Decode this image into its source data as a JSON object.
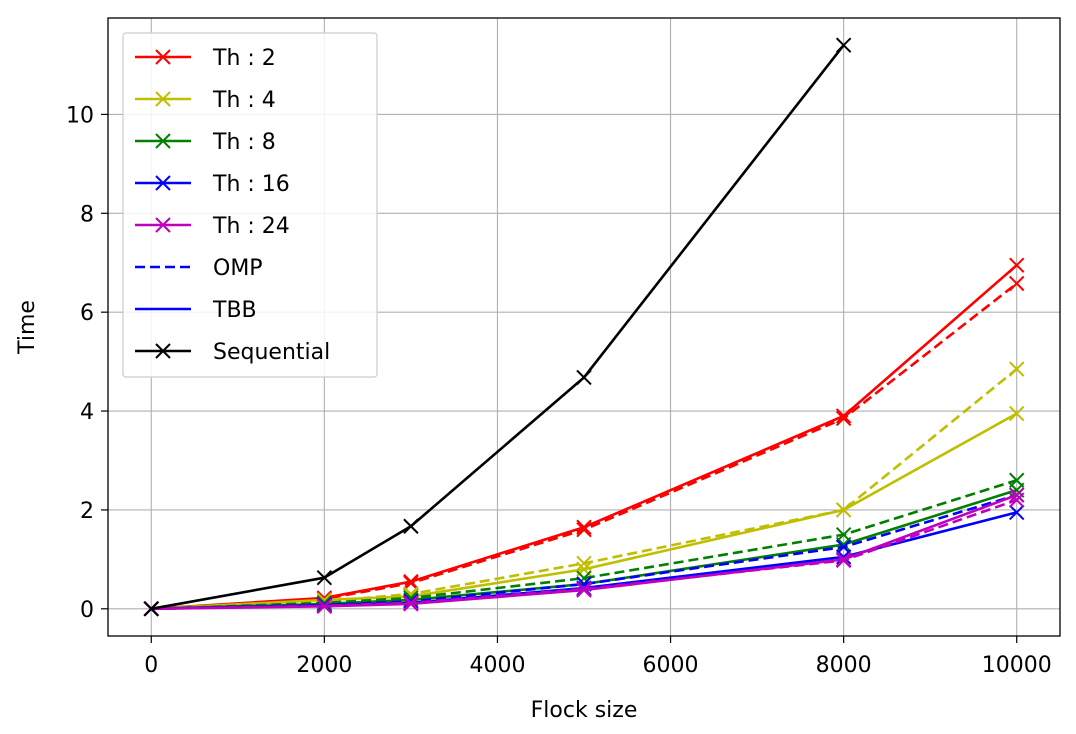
{
  "chart_data": {
    "type": "line",
    "title": "",
    "xlabel": "Flock size",
    "ylabel": "Time",
    "xlim": [
      -500,
      10500
    ],
    "ylim": [
      -0.55,
      11.95
    ],
    "x_ticks": [
      0,
      2000,
      4000,
      6000,
      8000,
      10000
    ],
    "y_ticks": [
      0,
      2,
      4,
      6,
      8,
      10
    ],
    "grid": true,
    "legend_position": "upper-left",
    "x": [
      0,
      2000,
      3000,
      5000,
      8000,
      10000
    ],
    "legend": [
      {
        "label": "Th : 2",
        "color": "#ff0000",
        "style": "solid",
        "marker": "x"
      },
      {
        "label": "Th : 4",
        "color": "#bfbf00",
        "style": "solid",
        "marker": "x"
      },
      {
        "label": "Th : 8",
        "color": "#008000",
        "style": "solid",
        "marker": "x"
      },
      {
        "label": "Th : 16",
        "color": "#0000ff",
        "style": "solid",
        "marker": "x"
      },
      {
        "label": "Th : 24",
        "color": "#bf00bf",
        "style": "solid",
        "marker": "x"
      },
      {
        "label": "OMP",
        "color": "#0000ff",
        "style": "dashed",
        "marker": "none"
      },
      {
        "label": "TBB",
        "color": "#0000ff",
        "style": "solid",
        "marker": "none"
      },
      {
        "label": "Sequential",
        "color": "#000000",
        "style": "solid",
        "marker": "x"
      }
    ],
    "series": [
      {
        "name": "Th : 2",
        "impl": "OMP",
        "color": "#ff0000",
        "style": "dashed",
        "values": [
          0.0,
          0.2,
          0.52,
          1.6,
          3.85,
          6.58
        ]
      },
      {
        "name": "Th : 2",
        "impl": "TBB",
        "color": "#ff0000",
        "style": "solid",
        "values": [
          0.0,
          0.22,
          0.55,
          1.65,
          3.9,
          6.95
        ]
      },
      {
        "name": "Th : 4",
        "impl": "OMP",
        "color": "#bfbf00",
        "style": "dashed",
        "values": [
          0.0,
          0.15,
          0.3,
          0.92,
          2.0,
          4.85
        ]
      },
      {
        "name": "Th : 4",
        "impl": "TBB",
        "color": "#bfbf00",
        "style": "solid",
        "values": [
          0.0,
          0.18,
          0.25,
          0.8,
          2.0,
          3.95
        ]
      },
      {
        "name": "Th : 8",
        "impl": "OMP",
        "color": "#008000",
        "style": "dashed",
        "values": [
          0.0,
          0.12,
          0.22,
          0.62,
          1.5,
          2.6
        ]
      },
      {
        "name": "Th : 8",
        "impl": "TBB",
        "color": "#008000",
        "style": "solid",
        "values": [
          0.0,
          0.1,
          0.18,
          0.5,
          1.3,
          2.4
        ]
      },
      {
        "name": "Th : 16",
        "impl": "OMP",
        "color": "#0000ff",
        "style": "dashed",
        "values": [
          0.0,
          0.08,
          0.15,
          0.5,
          1.25,
          2.3
        ]
      },
      {
        "name": "Th : 16",
        "impl": "TBB",
        "color": "#0000ff",
        "style": "solid",
        "values": [
          0.0,
          0.07,
          0.12,
          0.42,
          1.05,
          1.95
        ]
      },
      {
        "name": "Th : 24",
        "impl": "OMP",
        "color": "#bf00bf",
        "style": "dashed",
        "values": [
          0.0,
          0.06,
          0.12,
          0.4,
          0.98,
          2.2
        ]
      },
      {
        "name": "Th : 24",
        "impl": "TBB",
        "color": "#bf00bf",
        "style": "solid",
        "values": [
          0.0,
          0.05,
          0.1,
          0.38,
          1.0,
          2.3
        ]
      },
      {
        "name": "Sequential",
        "impl": "",
        "color": "#000000",
        "style": "solid",
        "values": [
          0.0,
          0.63,
          1.67,
          4.68,
          11.4,
          null
        ]
      }
    ]
  }
}
